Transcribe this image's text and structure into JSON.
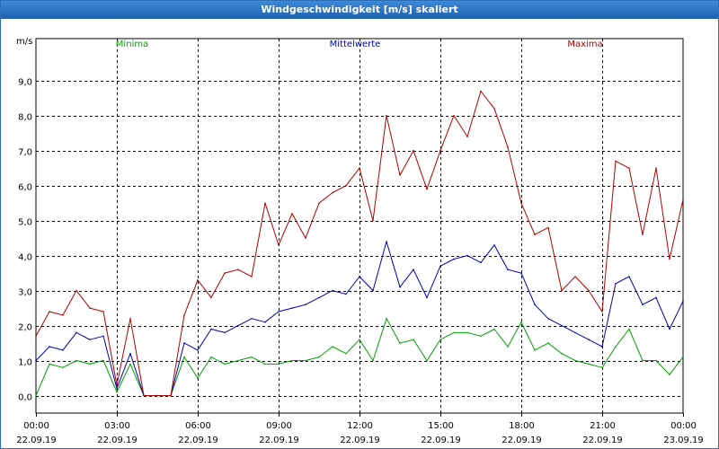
{
  "window": {
    "title": "Windgeschwindigkeit [m/s] skaliert"
  },
  "colors": {
    "minima": "#00a000",
    "mittelwerte": "#0000b0",
    "maxima": "#b00000",
    "grid": "#000000",
    "title_bg": "#2a6fb8"
  },
  "chart_data": {
    "type": "line",
    "title": "Windgeschwindigkeit [m/s] skaliert",
    "ylabel": "m/s",
    "xlabel": "",
    "ylim": [
      -0.5,
      10.2
    ],
    "xlim": [
      0,
      24
    ],
    "y_ticks": [
      0,
      1,
      2,
      3,
      4,
      5,
      6,
      7,
      8,
      9
    ],
    "y_tick_labels": [
      "0,0",
      "1,0",
      "2,0",
      "3,0",
      "4,0",
      "5,0",
      "6,0",
      "7,0",
      "8,0",
      "9,0"
    ],
    "x_ticks": [
      0,
      3,
      6,
      9,
      12,
      15,
      18,
      21,
      24
    ],
    "x_tick_labels": [
      {
        "time": "00:00",
        "date": "22.09.19"
      },
      {
        "time": "03:00",
        "date": "22.09.19"
      },
      {
        "time": "06:00",
        "date": "22.09.19"
      },
      {
        "time": "09:00",
        "date": "22.09.19"
      },
      {
        "time": "12:00",
        "date": "22.09.19"
      },
      {
        "time": "15:00",
        "date": "22.09.19"
      },
      {
        "time": "18:00",
        "date": "22.09.19"
      },
      {
        "time": "21:00",
        "date": "22.09.19"
      },
      {
        "time": "00:00",
        "date": "23.09.19"
      }
    ],
    "grid": true,
    "series": [
      {
        "name": "Minima",
        "color": "#00a000",
        "legend_position": "left",
        "x": [
          0,
          0.5,
          1,
          1.5,
          2,
          2.5,
          3,
          3.5,
          4,
          4.5,
          5,
          5.5,
          6,
          6.5,
          7,
          7.5,
          8,
          8.5,
          9,
          9.5,
          10,
          10.5,
          11,
          11.5,
          12,
          12.5,
          13,
          13.5,
          14,
          14.5,
          15,
          15.5,
          16,
          16.5,
          17,
          17.5,
          18,
          18.5,
          19,
          19.5,
          20,
          20.5,
          21,
          21.5,
          22,
          22.5,
          23,
          23.5,
          24
        ],
        "values": [
          0.0,
          0.9,
          0.8,
          1.0,
          0.9,
          1.0,
          0.1,
          0.9,
          0.0,
          0.0,
          0.0,
          1.1,
          0.5,
          1.1,
          0.9,
          1.0,
          1.1,
          0.9,
          0.9,
          1.0,
          1.0,
          1.1,
          1.4,
          1.2,
          1.6,
          1.0,
          2.2,
          1.5,
          1.6,
          1.0,
          1.6,
          1.8,
          1.8,
          1.7,
          1.9,
          1.4,
          2.1,
          1.3,
          1.5,
          1.2,
          1.0,
          0.9,
          0.8,
          1.4,
          1.9,
          1.0,
          1.0,
          0.6,
          1.1
        ]
      },
      {
        "name": "Mittelwerte",
        "color": "#0000b0",
        "legend_position": "center",
        "x": [
          0,
          0.5,
          1,
          1.5,
          2,
          2.5,
          3,
          3.5,
          4,
          4.5,
          5,
          5.5,
          6,
          6.5,
          7,
          7.5,
          8,
          8.5,
          9,
          9.5,
          10,
          10.5,
          11,
          11.5,
          12,
          12.5,
          13,
          13.5,
          14,
          14.5,
          15,
          15.5,
          16,
          16.5,
          17,
          17.5,
          18,
          18.5,
          19,
          19.5,
          20,
          20.5,
          21,
          21.5,
          22,
          22.5,
          23,
          23.5,
          24
        ],
        "values": [
          1.0,
          1.4,
          1.3,
          1.8,
          1.6,
          1.7,
          0.2,
          1.2,
          0.0,
          0.0,
          0.0,
          1.5,
          1.3,
          1.9,
          1.8,
          2.0,
          2.2,
          2.1,
          2.4,
          2.5,
          2.6,
          2.8,
          3.0,
          2.9,
          3.4,
          3.0,
          4.4,
          3.1,
          3.6,
          2.8,
          3.7,
          3.9,
          4.0,
          3.8,
          4.3,
          3.6,
          3.5,
          2.6,
          2.2,
          2.0,
          1.8,
          1.6,
          1.4,
          3.2,
          3.4,
          2.6,
          2.8,
          1.9,
          2.7
        ]
      },
      {
        "name": "Maxima",
        "color": "#b00000",
        "legend_position": "right",
        "x": [
          0,
          0.5,
          1,
          1.5,
          2,
          2.5,
          3,
          3.5,
          4,
          4.5,
          5,
          5.5,
          6,
          6.5,
          7,
          7.5,
          8,
          8.5,
          9,
          9.5,
          10,
          10.5,
          11,
          11.5,
          12,
          12.5,
          13,
          13.5,
          14,
          14.5,
          15,
          15.5,
          16,
          16.5,
          17,
          17.5,
          18,
          18.5,
          19,
          19.5,
          20,
          20.5,
          21,
          21.5,
          22,
          22.5,
          23,
          23.5,
          24
        ],
        "values": [
          1.7,
          2.4,
          2.3,
          3.0,
          2.5,
          2.4,
          0.3,
          2.2,
          0.0,
          0.0,
          0.0,
          2.3,
          3.3,
          2.8,
          3.5,
          3.6,
          3.4,
          5.5,
          4.3,
          5.2,
          4.5,
          5.5,
          5.8,
          6.0,
          6.5,
          5.0,
          8.0,
          6.3,
          7.0,
          5.9,
          7.0,
          8.0,
          7.4,
          8.7,
          8.2,
          7.1,
          5.5,
          4.6,
          4.8,
          3.0,
          3.4,
          3.0,
          2.4,
          6.7,
          6.5,
          4.6,
          6.5,
          3.9,
          5.6
        ]
      }
    ]
  }
}
